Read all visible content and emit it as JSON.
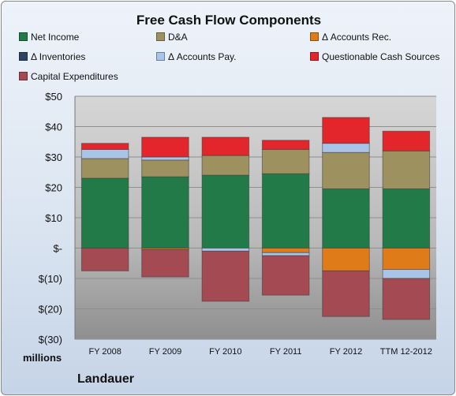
{
  "chart_data": {
    "type": "bar",
    "stacked": true,
    "title": "Free Cash Flow Components",
    "ylabel": "millions",
    "caption": "Landauer",
    "categories": [
      "FY 2008",
      "FY 2009",
      "FY 2010",
      "FY 2011",
      "FY 2012",
      "TTM 12-2012"
    ],
    "ylim": [
      -30,
      50
    ],
    "yticks": [
      50,
      40,
      30,
      20,
      10,
      0,
      -10,
      -20,
      -30
    ],
    "ytick_labels": [
      "$50",
      "$40",
      "$30",
      "$20",
      "$10",
      "$-",
      "$(10)",
      "$(20)",
      "$(30)"
    ],
    "grid": true,
    "legend_position": "top",
    "series": [
      {
        "name": "Net Income",
        "color": "#217a47",
        "values": [
          23,
          23.5,
          24,
          24.5,
          19.5,
          19.5
        ]
      },
      {
        "name": "D&A",
        "color": "#9e9160",
        "values": [
          6.5,
          5.5,
          6.5,
          8,
          12,
          12.5
        ]
      },
      {
        "name": "Δ Accounts Rec.",
        "color": "#e07b1a",
        "values": [
          0,
          -0.5,
          0,
          -1.5,
          -7.5,
          -7
        ]
      },
      {
        "name": "Δ Inventories",
        "color": "#2c4561",
        "values": [
          0,
          0,
          0,
          0,
          0,
          0
        ]
      },
      {
        "name": "Δ Accounts Pay.",
        "color": "#a8c4e6",
        "values": [
          3,
          1,
          -1,
          -1,
          3,
          -3
        ]
      },
      {
        "name": "Questionable Cash Sources",
        "color": "#e3262b",
        "values": [
          2,
          6.5,
          6,
          3,
          8.5,
          6.5
        ]
      },
      {
        "name": "Capital Expenditures",
        "color": "#a34a52",
        "values": [
          -7.5,
          -9,
          -16.5,
          -13,
          -15,
          -13.5
        ]
      }
    ]
  }
}
